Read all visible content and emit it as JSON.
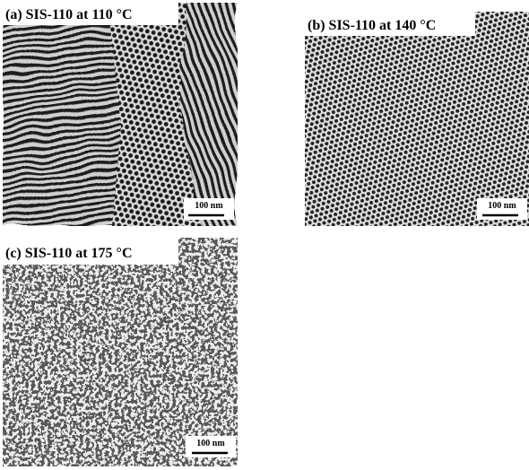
{
  "panels": [
    {
      "label": "(a) SIS-110 at 110 °C",
      "scale_bar": "100 nm"
    },
    {
      "label": "(b) SIS-110 at 140 °C",
      "scale_bar": "100 nm"
    },
    {
      "label": "(c) SIS-110 at 175 °C",
      "scale_bar": "100 nm"
    }
  ]
}
